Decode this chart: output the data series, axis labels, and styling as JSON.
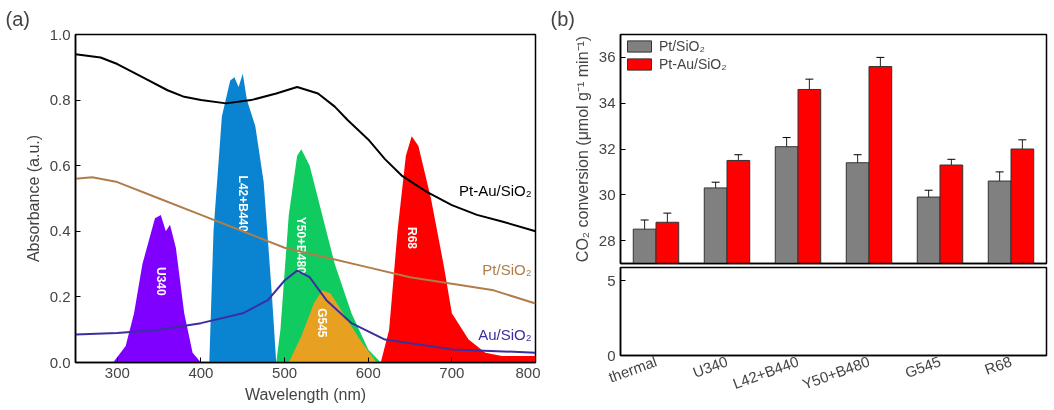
{
  "chart_data": [
    {
      "type": "line",
      "annotations": [
        "(a)"
      ],
      "xlabel": "Wavelength (nm)",
      "ylabel": "Absorbance (a.u.)",
      "xlim": [
        250,
        800
      ],
      "ylim": [
        0,
        1.0
      ],
      "xticks": [
        300,
        400,
        500,
        600,
        700,
        800
      ],
      "yticks": [
        {
          "value": 0,
          "label": "0.0"
        },
        0.2,
        0.4,
        0.6,
        0.8,
        {
          "value": 1,
          "label": "1.0"
        }
      ],
      "grid": false,
      "series": [
        {
          "name": "U340",
          "type": "area",
          "color": "#8000ff",
          "x": [
            295,
            310,
            320,
            330,
            345,
            352,
            358,
            363,
            370,
            380,
            390,
            400
          ],
          "values": [
            0,
            0.05,
            0.15,
            0.3,
            0.44,
            0.45,
            0.4,
            0.42,
            0.35,
            0.15,
            0.03,
            0
          ]
        },
        {
          "name": "L42+B440",
          "type": "area",
          "color": "#0a84d0",
          "x": [
            410,
            415,
            425,
            435,
            440,
            445,
            450,
            455,
            465,
            475,
            485,
            490
          ],
          "values": [
            0,
            0.4,
            0.75,
            0.86,
            0.87,
            0.84,
            0.88,
            0.8,
            0.72,
            0.55,
            0.2,
            0
          ]
        },
        {
          "name": "Y50+B480",
          "type": "area",
          "color": "#10cc60",
          "x": [
            490,
            495,
            505,
            515,
            520,
            530,
            545,
            560,
            580,
            600,
            615
          ],
          "values": [
            0,
            0.1,
            0.45,
            0.63,
            0.65,
            0.6,
            0.45,
            0.3,
            0.15,
            0.04,
            0
          ]
        },
        {
          "name": "G545",
          "type": "area",
          "color": "#e8a020",
          "x": [
            505,
            520,
            535,
            545,
            555,
            570,
            590,
            610
          ],
          "values": [
            0,
            0.08,
            0.18,
            0.22,
            0.21,
            0.15,
            0.07,
            0
          ]
        },
        {
          "name": "R68",
          "type": "area",
          "color": "#ff0000",
          "x": [
            615,
            625,
            635,
            645,
            652,
            660,
            675,
            690,
            700,
            720,
            740,
            760,
            800
          ],
          "values": [
            0,
            0.1,
            0.4,
            0.63,
            0.69,
            0.66,
            0.5,
            0.3,
            0.15,
            0.07,
            0.03,
            0.02,
            0.02
          ]
        },
        {
          "name": "Pt-Au/SiO₂",
          "type": "line",
          "color": "#000000",
          "x": [
            250,
            280,
            300,
            330,
            360,
            380,
            400,
            430,
            460,
            490,
            515,
            540,
            560,
            575,
            600,
            620,
            640,
            670,
            700,
            730,
            760,
            800
          ],
          "values": [
            0.94,
            0.93,
            0.91,
            0.87,
            0.83,
            0.81,
            0.8,
            0.79,
            0.8,
            0.82,
            0.84,
            0.82,
            0.78,
            0.74,
            0.68,
            0.62,
            0.57,
            0.52,
            0.48,
            0.45,
            0.43,
            0.4
          ]
        },
        {
          "name": "Pt/SiO₂",
          "type": "line",
          "color": "#b07d4a",
          "x": [
            250,
            270,
            300,
            350,
            400,
            450,
            500,
            550,
            600,
            650,
            700,
            750,
            800
          ],
          "values": [
            0.56,
            0.565,
            0.55,
            0.5,
            0.45,
            0.4,
            0.35,
            0.32,
            0.29,
            0.26,
            0.24,
            0.22,
            0.18
          ]
        },
        {
          "name": "Au/SiO₂",
          "type": "line",
          "color": "#3a2fa0",
          "x": [
            250,
            300,
            350,
            400,
            450,
            480,
            500,
            515,
            530,
            550,
            580,
            620,
            700,
            800
          ],
          "values": [
            0.085,
            0.09,
            0.1,
            0.12,
            0.15,
            0.19,
            0.25,
            0.28,
            0.26,
            0.19,
            0.12,
            0.07,
            0.04,
            0.03
          ]
        }
      ]
    },
    {
      "type": "bar",
      "annotations": [
        "(b)"
      ],
      "ylabel": "CO₂ conversion (μmol g⁻¹ min⁻¹)",
      "categories": [
        null,
        null,
        null,
        null,
        null,
        null
      ],
      "ylim": [
        27,
        37
      ],
      "yticks": [
        28,
        30,
        32,
        34,
        36
      ],
      "tick_labels": "y",
      "grid": false,
      "legend": "top left",
      "series": [
        {
          "name": "Pt/SiO₂",
          "color": "#808080",
          "values": [
            28.5,
            30.3,
            32.1,
            31.4,
            29.9,
            30.6
          ],
          "errors": [
            0.4,
            0.25,
            0.4,
            0.35,
            0.3,
            0.4
          ]
        },
        {
          "name": "Pt-Au/SiO₂",
          "color": "#ff0000",
          "values": [
            28.8,
            31.5,
            34.6,
            35.6,
            31.3,
            32.0
          ],
          "errors": [
            0.4,
            0.25,
            0.45,
            0.4,
            0.25,
            0.4
          ]
        }
      ]
    },
    {
      "type": "bar",
      "categories": [
        "thermal",
        "U340",
        "L42+B440",
        "Y50+B480",
        "G545",
        "R68"
      ],
      "ylim": [
        0,
        5.9
      ],
      "yticks": [
        0,
        5
      ],
      "grid": false,
      "series": [
        {
          "color": "#808080",
          "values": [
            null,
            null,
            null,
            null,
            null,
            null
          ]
        },
        {
          "color": "#ff0000",
          "values": [
            null,
            null,
            null,
            null,
            null,
            null
          ]
        }
      ]
    }
  ]
}
